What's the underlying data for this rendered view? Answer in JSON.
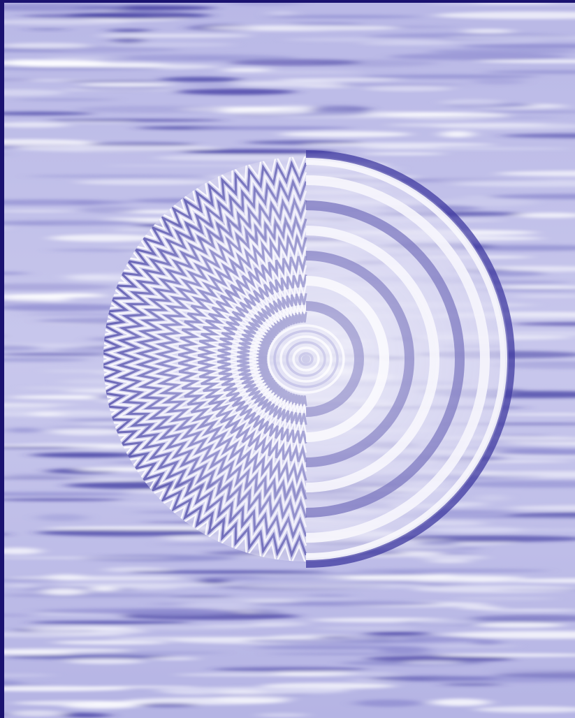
{
  "image": {
    "alt": "",
    "palette": {
      "frame": "#1a1270",
      "deep": "#3f3aa0",
      "mid": "#8f8dd0",
      "light": "#dcdcf3",
      "white": "#ffffff"
    },
    "ring_count": 7,
    "ripple_band_count": 9
  }
}
